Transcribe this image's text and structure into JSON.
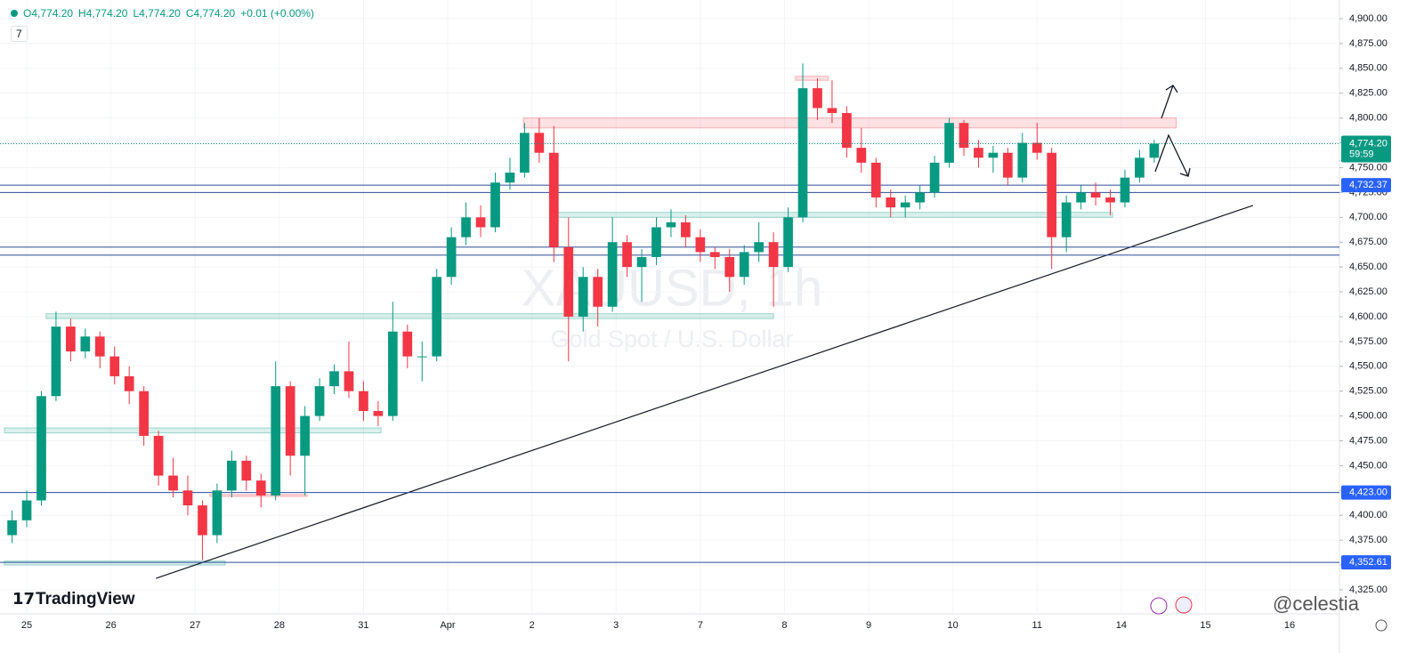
{
  "header": {
    "items": [
      "O4,774.20",
      "H4,774.20",
      "L4,774.20",
      "C4,774.20",
      "+0.01 (+0.00%)"
    ],
    "indicator": "7"
  },
  "chart_data": {
    "type": "candlestick",
    "watermark": "XAUUSD, 1h",
    "watermark_sub": "Gold Spot / U.S. Dollar",
    "brand": "TradingView",
    "signature": "@celestia",
    "up_color": "#089981",
    "down_color": "#f23645",
    "xlim": [
      -7.3,
      358.6
    ],
    "ylim": [
      4300.8,
      4918.8
    ],
    "xticks": [
      {
        "value": 0,
        "label": "25"
      },
      {
        "value": 23,
        "label": "26"
      },
      {
        "value": 46,
        "label": "27"
      },
      {
        "value": 69,
        "label": "28"
      },
      {
        "value": 92,
        "label": "31"
      },
      {
        "value": 115,
        "label": "Apr"
      },
      {
        "value": 138,
        "label": "2"
      },
      {
        "value": 161,
        "label": "3"
      },
      {
        "value": 184,
        "label": "7"
      },
      {
        "value": 207,
        "label": "8"
      },
      {
        "value": 230,
        "label": "9"
      },
      {
        "value": 253,
        "label": "10"
      },
      {
        "value": 276,
        "label": "11"
      },
      {
        "value": 299,
        "label": "14"
      },
      {
        "value": 322,
        "label": "15"
      },
      {
        "value": 345,
        "label": "16"
      }
    ],
    "yticks": [
      {
        "value": 4325,
        "label": "4,325.00"
      },
      {
        "value": 4350,
        "label": "4,350.00"
      },
      {
        "value": 4375,
        "label": "4,375.00"
      },
      {
        "value": 4400,
        "label": "4,400.00"
      },
      {
        "value": 4425,
        "label": "4,425.00"
      },
      {
        "value": 4450,
        "label": "4,450.00"
      },
      {
        "value": 4475,
        "label": "4,475.00"
      },
      {
        "value": 4500,
        "label": "4,500.00"
      },
      {
        "value": 4525,
        "label": "4,525.00"
      },
      {
        "value": 4550,
        "label": "4,550.00"
      },
      {
        "value": 4575,
        "label": "4,575.00"
      },
      {
        "value": 4600,
        "label": "4,600.00"
      },
      {
        "value": 4625,
        "label": "4,625.00"
      },
      {
        "value": 4650,
        "label": "4,650.00"
      },
      {
        "value": 4675,
        "label": "4,675.00"
      },
      {
        "value": 4700,
        "label": "4,700.00"
      },
      {
        "value": 4725,
        "label": "4,725.00"
      },
      {
        "value": 4750,
        "label": "4,750.00"
      },
      {
        "value": 4775,
        "label": "4,775.00"
      },
      {
        "value": 4800,
        "label": "4,800.00"
      },
      {
        "value": 4825,
        "label": "4,825.00"
      },
      {
        "value": 4850,
        "label": "4,850.00"
      },
      {
        "value": 4875,
        "label": "4,875.00"
      },
      {
        "value": 4900,
        "label": "4,900.00"
      }
    ],
    "candles": {
      "x": [
        -4,
        0,
        4,
        8,
        12,
        16,
        20,
        24,
        28,
        32,
        36,
        40,
        44,
        48,
        52,
        56,
        60,
        64,
        68,
        72,
        76,
        80,
        84,
        88,
        92,
        96,
        100,
        104,
        108,
        112,
        116,
        120,
        124,
        128,
        132,
        136,
        140,
        144,
        148,
        152,
        156,
        160,
        164,
        168,
        172,
        176,
        180,
        184,
        188,
        192,
        196,
        200,
        204,
        208,
        212,
        216,
        220,
        224,
        228,
        232,
        236,
        240,
        244,
        248,
        252,
        256,
        260,
        264,
        268,
        272,
        276,
        280,
        284,
        288,
        292,
        296,
        300,
        304,
        308
      ],
      "open": [
        4380,
        4395,
        4415,
        4520,
        4590,
        4565,
        4580,
        4560,
        4540,
        4525,
        4480,
        4440,
        4425,
        4410,
        4380,
        4425,
        4455,
        4435,
        4420,
        4530,
        4460,
        4500,
        4530,
        4545,
        4525,
        4505,
        4500,
        4585,
        4560,
        4560,
        4640,
        4680,
        4700,
        4690,
        4735,
        4745,
        4785,
        4765,
        4670,
        4600,
        4640,
        4610,
        4675,
        4650,
        4660,
        4690,
        4695,
        4680,
        4665,
        4660,
        4640,
        4665,
        4675,
        4650,
        4700,
        4830,
        4810,
        4805,
        4770,
        4755,
        4720,
        4710,
        4715,
        4725,
        4755,
        4795,
        4770,
        4760,
        4765,
        4740,
        4775,
        4765,
        4680,
        4715,
        4725,
        4720,
        4715,
        4740,
        4760
      ],
      "high": [
        4405,
        4425,
        4525,
        4605,
        4598,
        4588,
        4585,
        4570,
        4550,
        4530,
        4485,
        4458,
        4440,
        4415,
        4432,
        4465,
        4460,
        4442,
        4555,
        4535,
        4510,
        4538,
        4552,
        4575,
        4535,
        4515,
        4615,
        4592,
        4575,
        4648,
        4690,
        4715,
        4712,
        4745,
        4760,
        4795,
        4800,
        4792,
        4700,
        4650,
        4648,
        4700,
        4682,
        4668,
        4700,
        4708,
        4702,
        4688,
        4670,
        4668,
        4672,
        4695,
        4685,
        4710,
        4855,
        4840,
        4838,
        4812,
        4790,
        4760,
        4728,
        4722,
        4732,
        4762,
        4800,
        4798,
        4778,
        4772,
        4770,
        4785,
        4795,
        4770,
        4722,
        4732,
        4735,
        4728,
        4748,
        4768,
        4778
      ],
      "low": [
        4372,
        4388,
        4410,
        4515,
        4555,
        4558,
        4548,
        4532,
        4512,
        4470,
        4430,
        4418,
        4400,
        4355,
        4372,
        4418,
        4425,
        4408,
        4415,
        4440,
        4420,
        4495,
        4522,
        4518,
        4495,
        4490,
        4495,
        4548,
        4535,
        4555,
        4632,
        4672,
        4680,
        4685,
        4728,
        4740,
        4755,
        4655,
        4555,
        4585,
        4590,
        4605,
        4640,
        4615,
        4652,
        4680,
        4670,
        4655,
        4648,
        4625,
        4632,
        4655,
        4610,
        4645,
        4695,
        4798,
        4795,
        4760,
        4745,
        4710,
        4700,
        4700,
        4708,
        4720,
        4750,
        4762,
        4750,
        4745,
        4732,
        4735,
        4758,
        4648,
        4665,
        4708,
        4712,
        4702,
        4710,
        4735,
        4755
      ],
      "close": [
        4395,
        4415,
        4520,
        4590,
        4565,
        4580,
        4560,
        4540,
        4525,
        4480,
        4440,
        4425,
        4410,
        4380,
        4425,
        4455,
        4435,
        4420,
        4530,
        4460,
        4500,
        4530,
        4545,
        4525,
        4505,
        4500,
        4585,
        4560,
        4560,
        4640,
        4680,
        4700,
        4690,
        4735,
        4745,
        4785,
        4765,
        4670,
        4600,
        4640,
        4610,
        4675,
        4650,
        4660,
        4690,
        4695,
        4680,
        4665,
        4660,
        4640,
        4665,
        4675,
        4650,
        4700,
        4830,
        4810,
        4805,
        4770,
        4755,
        4720,
        4710,
        4715,
        4725,
        4755,
        4795,
        4770,
        4760,
        4765,
        4740,
        4775,
        4765,
        4680,
        4715,
        4725,
        4720,
        4715,
        4740,
        4760,
        4774.2
      ]
    },
    "zones": [
      {
        "from": 4790,
        "to": 4800,
        "x": [
          135.7,
          314
        ],
        "color": "#f23645"
      },
      {
        "from": 4838,
        "to": 4842,
        "x": [
          210,
          219
        ],
        "color": "#f23645"
      },
      {
        "from": 4700,
        "to": 4705,
        "x": [
          144.7,
          296.6
        ],
        "color": "#089981"
      },
      {
        "from": 4598,
        "to": 4603,
        "x": [
          5.3,
          204
        ],
        "color": "#089981"
      },
      {
        "from": 4483,
        "to": 4488,
        "x": [
          -6.1,
          96.8
        ],
        "color": "#089981"
      },
      {
        "from": 4350,
        "to": 4354,
        "x": [
          -6.1,
          54.2
        ],
        "color": "#089981"
      },
      {
        "from": 4419,
        "to": 4421,
        "x": [
          50,
          76.6
        ],
        "color": "#f23645"
      }
    ],
    "hlines": [
      {
        "value": 4732.37,
        "label": "4,732.37"
      },
      {
        "value": 4725
      },
      {
        "value": 4670
      },
      {
        "value": 4662
      },
      {
        "value": 4423,
        "label": "4,423.00"
      },
      {
        "value": 4352.61,
        "label": "4,352.61"
      }
    ],
    "hline_color": "#2b4c9b",
    "label_color": "#2962ff",
    "trendline": {
      "x": [
        35.3,
        335
      ],
      "y": [
        4336.6,
        4712
      ]
    },
    "last": {
      "value": 4774.2,
      "label": "4,774.20",
      "countdown": "59:59"
    }
  }
}
